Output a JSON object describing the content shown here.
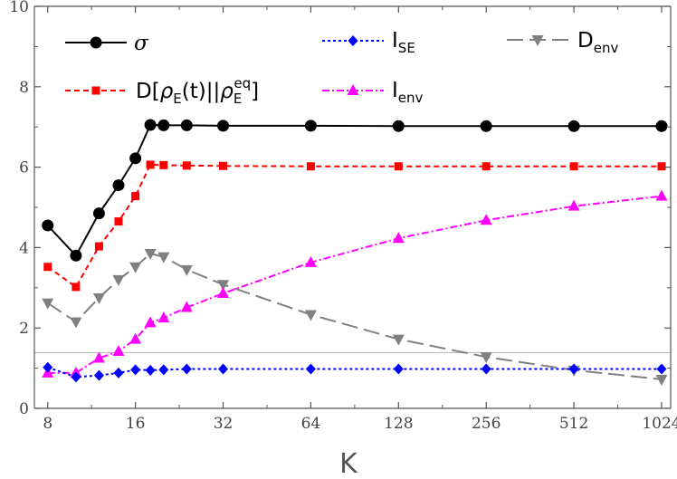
{
  "chart_data": {
    "type": "line",
    "xlabel": "K",
    "ylabel": "",
    "x_scale": "log2",
    "xlim": [
      7.2,
      1100
    ],
    "ylim": [
      0,
      10
    ],
    "x_ticks": [
      8,
      16,
      32,
      64,
      128,
      256,
      512,
      1024
    ],
    "x_tick_labels": [
      "8",
      "16",
      "32",
      "64",
      "128",
      "256",
      "512",
      "1024"
    ],
    "y_ticks": [
      0,
      2,
      4,
      6,
      8,
      10
    ],
    "y_tick_labels": [
      "0",
      "2",
      "4",
      "6",
      "8",
      "10"
    ],
    "grid": false,
    "reference_line": {
      "y": 1.386,
      "color": "#bbbbbb"
    },
    "legend_position": "top",
    "series": [
      {
        "name": "σ",
        "color": "#000000",
        "marker": "circle",
        "dash": "solid",
        "x": [
          8,
          10,
          12,
          14,
          16,
          18,
          20,
          24,
          32,
          64,
          128,
          256,
          512,
          1024
        ],
        "y": [
          4.55,
          3.8,
          4.85,
          5.55,
          6.22,
          7.05,
          7.04,
          7.04,
          7.03,
          7.03,
          7.02,
          7.02,
          7.02,
          7.02
        ]
      },
      {
        "name": "D[ρE(t)||ρEeq]",
        "label_parts": {
          "main": "D[",
          "rho1": "ρ",
          "sub1": "E",
          "mid": "(t)||",
          "rho2": "ρ",
          "sub2": "E",
          "sup2": "eq",
          "end": "]"
        },
        "color": "#ff0000",
        "marker": "square",
        "dash": "6,4",
        "x": [
          8,
          10,
          12,
          14,
          16,
          18,
          20,
          24,
          32,
          64,
          128,
          256,
          512,
          1024
        ],
        "y": [
          3.52,
          3.02,
          4.03,
          4.65,
          5.28,
          6.06,
          6.05,
          6.04,
          6.03,
          6.02,
          6.02,
          6.02,
          6.02,
          6.02
        ]
      },
      {
        "name": "ISE",
        "label_parts": {
          "main": "I",
          "sub": "SE"
        },
        "color": "#0000ff",
        "marker": "diamond",
        "dash": "3,3",
        "x": [
          8,
          10,
          12,
          14,
          16,
          18,
          20,
          24,
          32,
          64,
          128,
          256,
          512,
          1024
        ],
        "y": [
          1.02,
          0.78,
          0.82,
          0.88,
          0.96,
          0.95,
          0.96,
          0.98,
          0.98,
          0.98,
          0.98,
          0.98,
          0.98,
          0.98
        ]
      },
      {
        "name": "Ienv",
        "label_parts": {
          "main": "I",
          "sub": "env"
        },
        "color": "#ff00ff",
        "marker": "triangle-up",
        "dash": "8,3,2,3",
        "x": [
          8,
          10,
          12,
          14,
          16,
          18,
          20,
          24,
          32,
          64,
          128,
          256,
          512,
          1024
        ],
        "y": [
          0.88,
          0.88,
          1.25,
          1.42,
          1.72,
          2.13,
          2.25,
          2.51,
          2.86,
          3.63,
          4.23,
          4.68,
          5.03,
          5.28
        ]
      },
      {
        "name": "Denv",
        "label_parts": {
          "main": "D",
          "sub": "env"
        },
        "color": "#808080",
        "marker": "triangle-down",
        "dash": "18,7",
        "x": [
          8,
          10,
          12,
          14,
          16,
          18,
          20,
          24,
          32,
          64,
          128,
          256,
          512,
          1024
        ],
        "y": [
          2.62,
          2.15,
          2.75,
          3.2,
          3.52,
          3.85,
          3.77,
          3.45,
          3.08,
          2.33,
          1.72,
          1.28,
          0.95,
          0.72
        ]
      }
    ]
  }
}
